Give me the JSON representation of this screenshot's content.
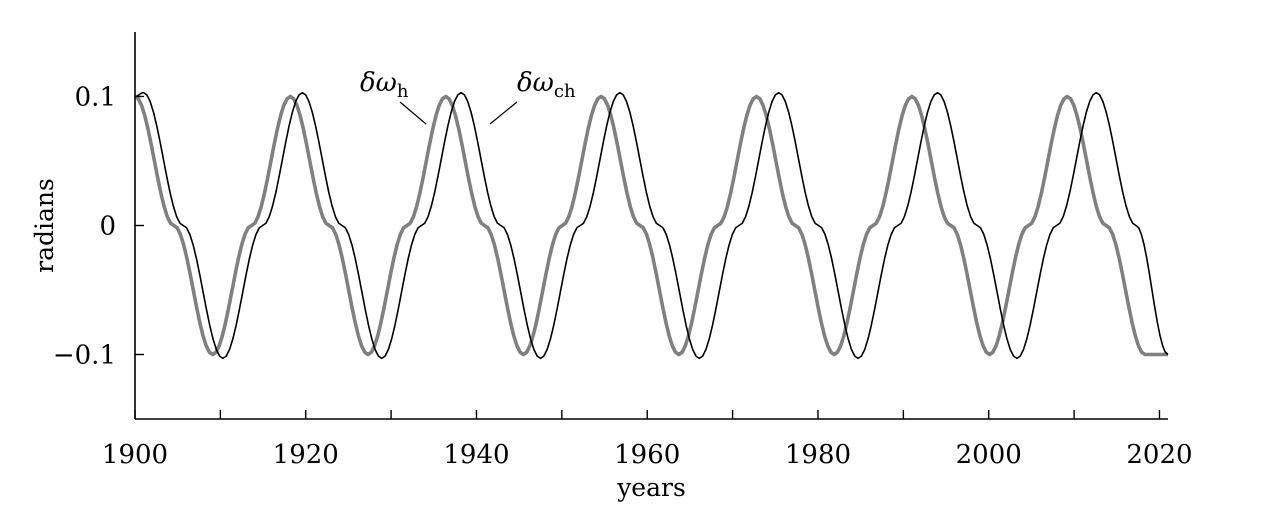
{
  "chart_data": {
    "type": "line",
    "title": "",
    "xlabel": "years",
    "ylabel": "radians",
    "xlim": [
      1900,
      2021
    ],
    "ylim": [
      -0.15,
      0.15
    ],
    "x_ticks": [
      1900,
      1920,
      1940,
      1960,
      1980,
      2000,
      2020
    ],
    "x_tick_labels": [
      "1900",
      "1920",
      "1940",
      "1960",
      "1980",
      "2000",
      "2020"
    ],
    "x_minor_ticks": [
      1910,
      1930,
      1950,
      1970,
      1990,
      2010
    ],
    "y_ticks": [
      0.1,
      0,
      -0.1
    ],
    "y_tick_labels": [
      "0.1",
      "0",
      "−0.1"
    ],
    "grid": false,
    "legend": "none",
    "series": [
      {
        "name": "δωh",
        "label_main": "δω",
        "label_sub": "h",
        "color": "#808080",
        "x": [
          1900,
          1904.55,
          1909.1,
          1913.65,
          1918.2,
          1922.75,
          1927.3,
          1931.85,
          1936.4,
          1940.95,
          1945.5,
          1950.05,
          1954.6,
          1959.15,
          1963.7,
          1968.25,
          1972.8,
          1977.35,
          1981.9,
          1986.45,
          1991.0,
          1995.55,
          2000.1,
          2004.65,
          2009.2,
          2013.75,
          2018.3,
          2021
        ],
        "y": [
          0.1,
          0,
          -0.1,
          0,
          0.1,
          0,
          -0.1,
          0,
          0.1,
          0,
          -0.1,
          0,
          0.1,
          0,
          -0.1,
          0,
          0.1,
          0,
          -0.1,
          0,
          0.1,
          0,
          -0.1,
          0,
          0.1,
          0,
          -0.1,
          -0.1
        ]
      },
      {
        "name": "δωch",
        "label_main": "δω",
        "label_sub": "ch",
        "color": "#000000",
        "x": [
          1900,
          1901.0,
          1905.65,
          1910.3,
          1914.95,
          1919.6,
          1924.25,
          1928.9,
          1933.55,
          1938.2,
          1942.85,
          1947.5,
          1952.15,
          1956.8,
          1961.45,
          1966.1,
          1970.75,
          1975.4,
          1980.05,
          1984.7,
          1989.35,
          1994.0,
          1998.65,
          2003.3,
          2007.95,
          2012.6,
          2017.25,
          2021
        ],
        "y": [
          0.1,
          0.103,
          0,
          -0.103,
          0,
          0.103,
          0,
          -0.103,
          0,
          0.103,
          0,
          -0.103,
          0,
          0.103,
          0,
          -0.103,
          0,
          0.103,
          0,
          -0.103,
          0,
          0.103,
          0,
          -0.103,
          0,
          0.103,
          0,
          -0.1
        ]
      }
    ]
  }
}
